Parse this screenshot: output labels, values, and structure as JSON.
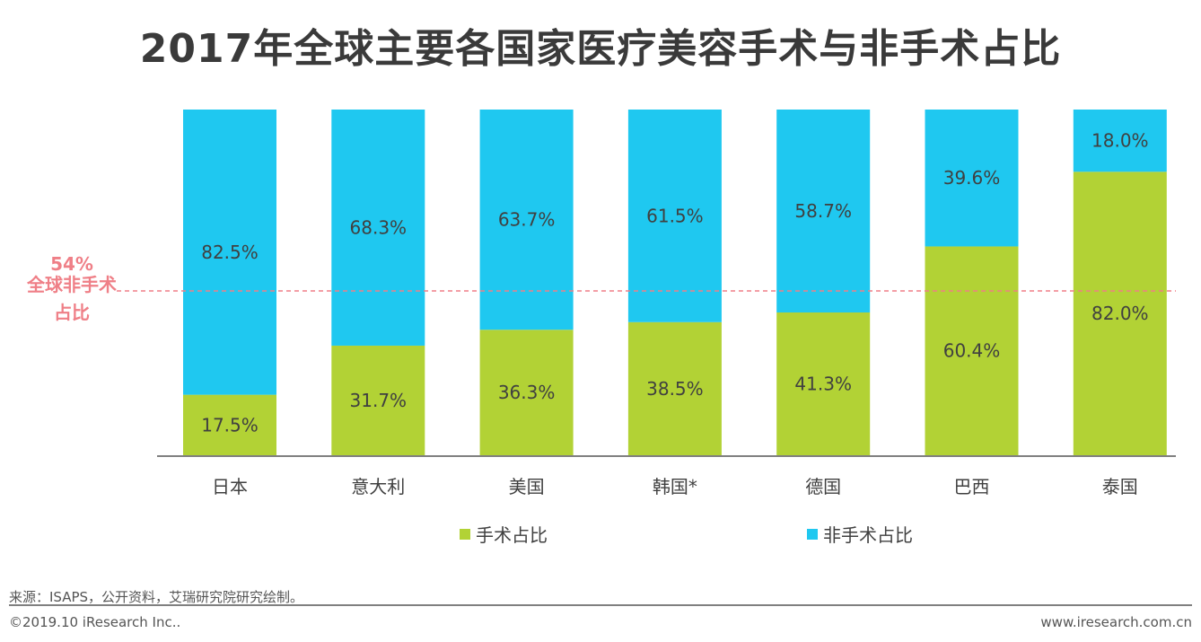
{
  "chart_data": {
    "type": "bar",
    "stacked": true,
    "title": "2017年全球主要各国家医疗美容手术与非手术占比",
    "categories": [
      "日本",
      "意大利",
      "美国",
      "韩国*",
      "德国",
      "巴西",
      "泰国"
    ],
    "series": [
      {
        "name": "手术占比",
        "color": "#b2d235",
        "values": [
          17.5,
          31.7,
          36.3,
          38.5,
          41.3,
          60.4,
          82.0
        ]
      },
      {
        "name": "非手术占比",
        "color": "#1fc8f0",
        "values": [
          82.5,
          68.3,
          63.7,
          61.5,
          58.7,
          39.6,
          18.0
        ]
      }
    ],
    "ylim": [
      0,
      100
    ],
    "grid": false,
    "legend_position": "bottom",
    "reference_line": {
      "value_label": "54%",
      "label_line1": "全球非手术",
      "label_line2": "占比",
      "color": "#ef7f87",
      "style": "dashed"
    }
  },
  "footer": {
    "source": "来源：ISAPS，公开资料，艾瑞研究院研究绘制。",
    "copyright": "©2019.10 iResearch Inc..",
    "url": "www.iresearch.com.cn"
  }
}
